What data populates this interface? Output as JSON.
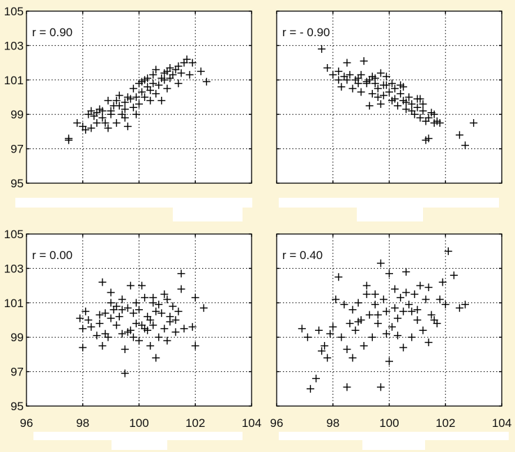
{
  "chart_data": [
    {
      "type": "scatter",
      "annotation": "r = 0.90",
      "xlim": [
        96,
        104
      ],
      "ylim": [
        95,
        105
      ],
      "xticks": [
        96,
        98,
        100,
        102,
        104
      ],
      "yticks": [
        95,
        97,
        99,
        101,
        103,
        105
      ],
      "show_x_ticklabels": false,
      "show_y_ticklabels": true,
      "grid": true,
      "points": [
        [
          97.5,
          97.6
        ],
        [
          97.5,
          97.5
        ],
        [
          97.8,
          98.5
        ],
        [
          98.0,
          98.3
        ],
        [
          98.1,
          98.1
        ],
        [
          98.2,
          99.0
        ],
        [
          98.3,
          99.2
        ],
        [
          98.3,
          98.2
        ],
        [
          98.5,
          98.5
        ],
        [
          98.5,
          99.1
        ],
        [
          98.7,
          98.8
        ],
        [
          98.7,
          99.2
        ],
        [
          98.8,
          98.5
        ],
        [
          98.9,
          99.8
        ],
        [
          98.9,
          98.2
        ],
        [
          99.0,
          99.0
        ],
        [
          99.1,
          99.5
        ],
        [
          99.2,
          98.5
        ],
        [
          99.2,
          99.8
        ],
        [
          99.3,
          99.5
        ],
        [
          99.4,
          99.0
        ],
        [
          99.5,
          99.7
        ],
        [
          99.5,
          98.8
        ],
        [
          99.6,
          98.3
        ],
        [
          99.7,
          99.9
        ],
        [
          99.8,
          99.4
        ],
        [
          99.8,
          100.5
        ],
        [
          99.9,
          99.0
        ],
        [
          99.9,
          100.0
        ],
        [
          100.0,
          100.8
        ],
        [
          100.0,
          99.6
        ],
        [
          100.1,
          100.3
        ],
        [
          100.2,
          101.0
        ],
        [
          100.2,
          100.0
        ],
        [
          100.3,
          100.6
        ],
        [
          100.4,
          99.8
        ],
        [
          100.5,
          100.8
        ],
        [
          100.5,
          101.3
        ],
        [
          100.6,
          100.2
        ],
        [
          100.7,
          100.7
        ],
        [
          100.8,
          101.1
        ],
        [
          100.8,
          99.8
        ],
        [
          100.9,
          101.0
        ],
        [
          101.0,
          100.5
        ],
        [
          101.0,
          101.5
        ],
        [
          101.1,
          101.1
        ],
        [
          101.2,
          101.3
        ],
        [
          101.3,
          101.6
        ],
        [
          101.4,
          100.8
        ],
        [
          101.5,
          101.4
        ],
        [
          101.6,
          102.0
        ],
        [
          101.7,
          102.2
        ],
        [
          101.8,
          101.3
        ],
        [
          101.9,
          102.0
        ],
        [
          102.2,
          101.5
        ],
        [
          102.4,
          100.9
        ],
        [
          99.0,
          99.2
        ],
        [
          99.3,
          100.1
        ],
        [
          99.6,
          100.0
        ],
        [
          100.1,
          100.9
        ],
        [
          100.6,
          101.6
        ],
        [
          101.1,
          101.7
        ],
        [
          98.6,
          99.3
        ],
        [
          100.4,
          100.4
        ],
        [
          99.5,
          99.3
        ],
        [
          100.9,
          101.4
        ],
        [
          101.4,
          101.8
        ],
        [
          98.4,
          98.9
        ],
        [
          100.3,
          101.1
        ]
      ]
    },
    {
      "type": "scatter",
      "annotation": "r = - 0.90",
      "xlim": [
        96,
        104
      ],
      "ylim": [
        95,
        105
      ],
      "xticks": [
        96,
        98,
        100,
        102,
        104
      ],
      "yticks": [
        95,
        97,
        99,
        101,
        103,
        105
      ],
      "show_x_ticklabels": false,
      "show_y_ticklabels": false,
      "grid": true,
      "points": [
        [
          97.6,
          102.8
        ],
        [
          97.8,
          101.7
        ],
        [
          98.0,
          101.3
        ],
        [
          98.2,
          101.0
        ],
        [
          98.3,
          100.6
        ],
        [
          98.4,
          101.2
        ],
        [
          98.5,
          102.0
        ],
        [
          98.6,
          101.3
        ],
        [
          98.7,
          100.5
        ],
        [
          98.8,
          101.0
        ],
        [
          98.9,
          100.8
        ],
        [
          99.0,
          101.3
        ],
        [
          99.0,
          100.3
        ],
        [
          99.1,
          102.1
        ],
        [
          99.2,
          100.8
        ],
        [
          99.3,
          101.0
        ],
        [
          99.3,
          99.5
        ],
        [
          99.4,
          100.2
        ],
        [
          99.5,
          100.8
        ],
        [
          99.5,
          101.1
        ],
        [
          99.6,
          100.5
        ],
        [
          99.7,
          101.4
        ],
        [
          99.7,
          99.6
        ],
        [
          99.8,
          100.1
        ],
        [
          99.9,
          100.7
        ],
        [
          99.9,
          101.2
        ],
        [
          100.0,
          100.3
        ],
        [
          100.1,
          99.8
        ],
        [
          100.1,
          100.8
        ],
        [
          100.2,
          100.5
        ],
        [
          100.3,
          99.5
        ],
        [
          100.4,
          100.2
        ],
        [
          100.5,
          99.8
        ],
        [
          100.5,
          100.6
        ],
        [
          100.6,
          99.3
        ],
        [
          100.7,
          100.0
        ],
        [
          100.8,
          99.6
        ],
        [
          100.9,
          99.0
        ],
        [
          101.0,
          99.4
        ],
        [
          101.1,
          98.8
        ],
        [
          101.1,
          99.9
        ],
        [
          101.2,
          99.2
        ],
        [
          101.3,
          98.6
        ],
        [
          101.4,
          98.8
        ],
        [
          101.5,
          99.1
        ],
        [
          101.6,
          98.5
        ],
        [
          101.7,
          98.6
        ],
        [
          101.4,
          97.6
        ],
        [
          101.3,
          97.5
        ],
        [
          102.5,
          97.8
        ],
        [
          102.7,
          97.2
        ],
        [
          103.0,
          98.5
        ],
        [
          98.5,
          101.0
        ],
        [
          99.6,
          100.0
        ],
        [
          100.4,
          100.7
        ],
        [
          101.0,
          99.9
        ],
        [
          99.2,
          100.9
        ],
        [
          100.8,
          99.2
        ],
        [
          98.2,
          101.5
        ],
        [
          101.2,
          99.6
        ],
        [
          99.8,
          100.7
        ],
        [
          100.6,
          99.7
        ],
        [
          99.4,
          101.2
        ],
        [
          101.6,
          99.0
        ],
        [
          100.2,
          99.9
        ],
        [
          98.9,
          101.1
        ],
        [
          101.8,
          98.5
        ]
      ]
    },
    {
      "type": "scatter",
      "annotation": "r = 0.00",
      "xlim": [
        96,
        104
      ],
      "ylim": [
        95,
        105
      ],
      "xticks": [
        96,
        98,
        100,
        102,
        104
      ],
      "yticks": [
        95,
        97,
        99,
        101,
        103,
        105
      ],
      "show_x_ticklabels": true,
      "show_y_ticklabels": true,
      "grid": true,
      "points": [
        [
          97.9,
          100.1
        ],
        [
          98.0,
          99.5
        ],
        [
          98.0,
          98.4
        ],
        [
          98.1,
          100.5
        ],
        [
          98.2,
          100.0
        ],
        [
          98.3,
          99.6
        ],
        [
          98.5,
          99.1
        ],
        [
          98.6,
          99.8
        ],
        [
          98.7,
          98.5
        ],
        [
          98.7,
          102.2
        ],
        [
          98.8,
          100.4
        ],
        [
          98.9,
          99.0
        ],
        [
          99.0,
          101.0
        ],
        [
          99.0,
          101.6
        ],
        [
          99.1,
          100.6
        ],
        [
          99.2,
          99.7
        ],
        [
          99.3,
          100.2
        ],
        [
          99.4,
          101.2
        ],
        [
          99.4,
          99.2
        ],
        [
          99.5,
          96.9
        ],
        [
          99.5,
          98.3
        ],
        [
          99.6,
          100.7
        ],
        [
          99.7,
          102.0
        ],
        [
          99.7,
          99.4
        ],
        [
          99.8,
          100.4
        ],
        [
          99.9,
          101.0
        ],
        [
          99.9,
          99.8
        ],
        [
          100.0,
          100.6
        ],
        [
          100.0,
          98.8
        ],
        [
          100.1,
          102.0
        ],
        [
          100.2,
          101.3
        ],
        [
          100.2,
          99.5
        ],
        [
          100.3,
          100.2
        ],
        [
          100.4,
          98.5
        ],
        [
          100.5,
          101.0
        ],
        [
          100.5,
          99.7
        ],
        [
          100.6,
          97.8
        ],
        [
          100.6,
          100.5
        ],
        [
          100.7,
          99.0
        ],
        [
          100.8,
          100.4
        ],
        [
          100.9,
          101.5
        ],
        [
          100.9,
          99.5
        ],
        [
          101.0,
          98.8
        ],
        [
          101.1,
          100.2
        ],
        [
          101.2,
          100.8
        ],
        [
          101.3,
          99.3
        ],
        [
          101.4,
          100.5
        ],
        [
          101.5,
          102.7
        ],
        [
          101.5,
          101.8
        ],
        [
          101.6,
          99.5
        ],
        [
          101.9,
          99.6
        ],
        [
          102.0,
          101.3
        ],
        [
          102.0,
          98.5
        ],
        [
          102.3,
          100.7
        ],
        [
          99.0,
          100.1
        ],
        [
          100.4,
          100.0
        ],
        [
          98.8,
          99.2
        ],
        [
          101.0,
          101.2
        ],
        [
          99.8,
          99.0
        ],
        [
          100.7,
          100.9
        ],
        [
          99.2,
          100.8
        ],
        [
          101.3,
          100.0
        ],
        [
          100.1,
          99.7
        ],
        [
          98.6,
          100.3
        ],
        [
          100.5,
          101.3
        ],
        [
          99.6,
          99.3
        ],
        [
          101.1,
          99.9
        ],
        [
          99.4,
          100.6
        ],
        [
          100.3,
          99.4
        ]
      ]
    },
    {
      "type": "scatter",
      "annotation": "r = 0.40",
      "xlim": [
        96,
        104
      ],
      "ylim": [
        95,
        105
      ],
      "xticks": [
        96,
        98,
        100,
        102,
        104
      ],
      "yticks": [
        95,
        97,
        99,
        101,
        103,
        105
      ],
      "show_x_ticklabels": true,
      "show_y_ticklabels": false,
      "grid": true,
      "points": [
        [
          96.9,
          99.5
        ],
        [
          97.1,
          99.0
        ],
        [
          97.2,
          96.0
        ],
        [
          97.4,
          96.6
        ],
        [
          97.5,
          99.4
        ],
        [
          97.6,
          98.2
        ],
        [
          97.7,
          98.5
        ],
        [
          97.8,
          97.8
        ],
        [
          97.9,
          99.2
        ],
        [
          98.1,
          101.2
        ],
        [
          98.2,
          102.5
        ],
        [
          98.3,
          99.0
        ],
        [
          98.5,
          98.3
        ],
        [
          98.5,
          96.1
        ],
        [
          98.6,
          99.8
        ],
        [
          98.7,
          97.8
        ],
        [
          98.7,
          100.6
        ],
        [
          98.8,
          99.4
        ],
        [
          98.9,
          101.0
        ],
        [
          99.0,
          100.0
        ],
        [
          99.1,
          98.5
        ],
        [
          99.2,
          101.5
        ],
        [
          99.3,
          100.3
        ],
        [
          99.4,
          99.0
        ],
        [
          99.5,
          100.9
        ],
        [
          99.6,
          99.8
        ],
        [
          99.7,
          103.3
        ],
        [
          99.7,
          96.1
        ],
        [
          99.8,
          101.2
        ],
        [
          99.9,
          100.5
        ],
        [
          100.0,
          97.6
        ],
        [
          100.0,
          102.7
        ],
        [
          100.1,
          99.6
        ],
        [
          100.2,
          101.8
        ],
        [
          100.3,
          100.1
        ],
        [
          100.4,
          101.3
        ],
        [
          100.5,
          98.4
        ],
        [
          100.5,
          100.5
        ],
        [
          100.6,
          102.8
        ],
        [
          100.7,
          100.9
        ],
        [
          100.8,
          99.0
        ],
        [
          100.9,
          101.5
        ],
        [
          101.0,
          100.6
        ],
        [
          101.1,
          102.0
        ],
        [
          101.2,
          99.4
        ],
        [
          101.3,
          101.2
        ],
        [
          101.4,
          98.7
        ],
        [
          101.5,
          100.3
        ],
        [
          101.6,
          100.0
        ],
        [
          101.8,
          101.2
        ],
        [
          101.9,
          102.2
        ],
        [
          102.0,
          100.9
        ],
        [
          102.1,
          104.0
        ],
        [
          102.3,
          102.6
        ],
        [
          102.5,
          100.7
        ],
        [
          102.7,
          100.9
        ],
        [
          98.9,
          99.9
        ],
        [
          100.2,
          100.7
        ],
        [
          99.5,
          101.5
        ],
        [
          101.0,
          100.0
        ],
        [
          98.4,
          100.9
        ],
        [
          100.8,
          100.5
        ],
        [
          99.9,
          99.2
        ],
        [
          101.7,
          99.8
        ],
        [
          99.2,
          102.0
        ],
        [
          100.3,
          99.1
        ],
        [
          98.0,
          99.6
        ],
        [
          101.4,
          101.9
        ],
        [
          99.6,
          100.3
        ],
        [
          100.6,
          101.6
        ]
      ]
    }
  ]
}
